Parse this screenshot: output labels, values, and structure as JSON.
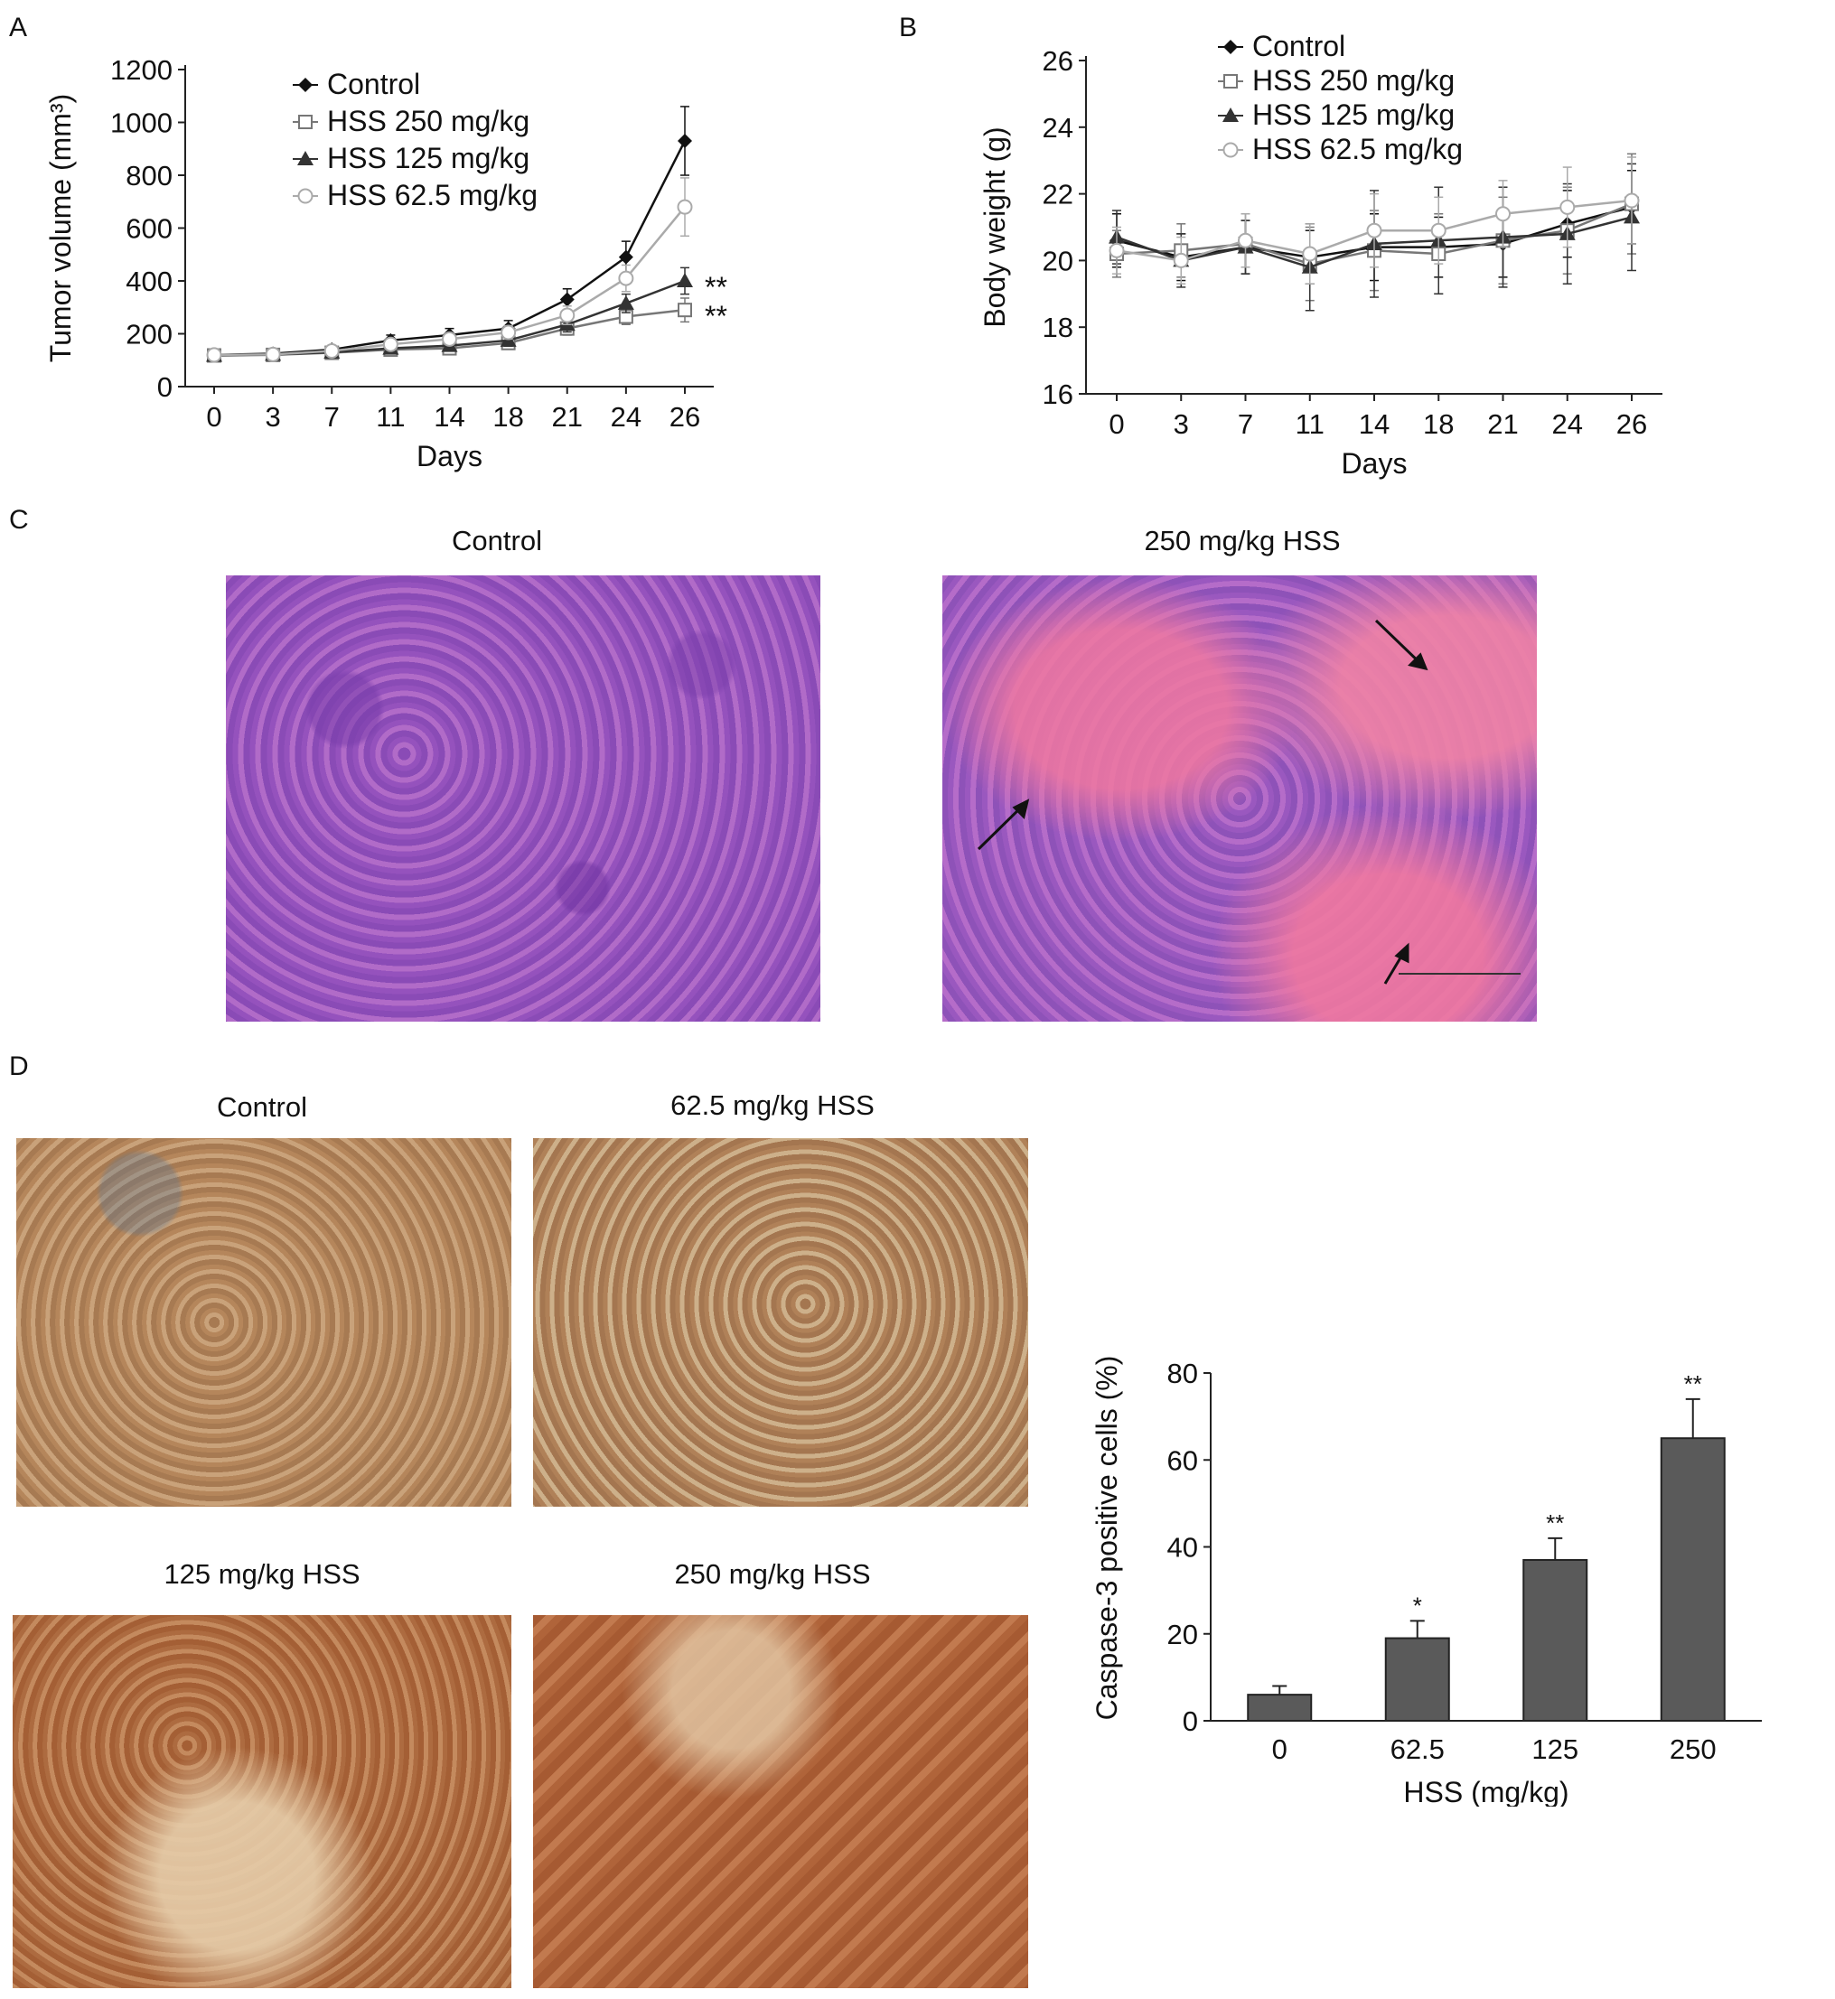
{
  "panels": {
    "A": "A",
    "B": "B",
    "C": "C",
    "D": "D"
  },
  "panel_c": {
    "titles": [
      "Control",
      "250 mg/kg HSS"
    ]
  },
  "panel_d": {
    "image_titles": [
      "Control",
      "62.5 mg/kg HSS",
      "125 mg/kg HSS",
      "250 mg/kg HSS"
    ]
  },
  "colors": {
    "control": "#111111",
    "hss250": "#777777",
    "hss125": "#333333",
    "hss62": "#aaaaaa",
    "bar": "#5a5a5a"
  },
  "chart_data": [
    {
      "type": "line",
      "xlabel": "Days",
      "ylabel": "Tumor volume (mm³)",
      "categories": [
        "0",
        "3",
        "7",
        "11",
        "14",
        "18",
        "21",
        "24",
        "26"
      ],
      "ylim": [
        0,
        1200
      ],
      "yticks": [
        0,
        200,
        400,
        600,
        800,
        1000,
        1200
      ],
      "legend_position": "top-left",
      "series": [
        {
          "name": "Control",
          "marker": "diamond-filled",
          "values": [
            120,
            125,
            140,
            175,
            195,
            220,
            330,
            490,
            930
          ],
          "errors": [
            10,
            10,
            15,
            20,
            25,
            30,
            40,
            60,
            130
          ]
        },
        {
          "name": "HSS 250 mg/kg",
          "marker": "square-open",
          "values": [
            118,
            120,
            128,
            140,
            145,
            165,
            220,
            265,
            290
          ],
          "errors": [
            10,
            10,
            12,
            15,
            20,
            20,
            25,
            30,
            45
          ]
        },
        {
          "name": "HSS 125 mg/kg",
          "marker": "triangle-filled",
          "values": [
            118,
            122,
            130,
            145,
            155,
            175,
            235,
            315,
            400
          ],
          "errors": [
            10,
            10,
            12,
            15,
            18,
            22,
            28,
            35,
            50
          ]
        },
        {
          "name": "HSS 62.5 mg/kg",
          "marker": "circle-open",
          "values": [
            120,
            122,
            135,
            160,
            180,
            205,
            270,
            410,
            680
          ],
          "errors": [
            10,
            10,
            14,
            18,
            22,
            25,
            35,
            50,
            110
          ]
        }
      ],
      "annotations": [
        "**",
        "**"
      ]
    },
    {
      "type": "line",
      "xlabel": "Days",
      "ylabel": "Body weight (g)",
      "categories": [
        "0",
        "3",
        "7",
        "11",
        "14",
        "18",
        "21",
        "24",
        "26"
      ],
      "ylim": [
        16,
        26
      ],
      "yticks": [
        16,
        18,
        20,
        22,
        24,
        26
      ],
      "legend_position": "top-center",
      "series": [
        {
          "name": "Control",
          "marker": "diamond-filled",
          "values": [
            20.6,
            20.1,
            20.4,
            20.1,
            20.4,
            20.4,
            20.5,
            21.1,
            21.6
          ],
          "errors": [
            0.8,
            0.7,
            0.8,
            0.8,
            1.0,
            0.9,
            1.0,
            1.0,
            1.1
          ]
        },
        {
          "name": "HSS 250 mg/kg",
          "marker": "square-open",
          "values": [
            20.2,
            20.3,
            20.5,
            19.9,
            20.3,
            20.2,
            20.6,
            20.9,
            21.7
          ],
          "errors": [
            0.7,
            0.8,
            0.9,
            1.1,
            1.2,
            1.2,
            1.3,
            1.3,
            1.5
          ]
        },
        {
          "name": "HSS 125 mg/kg",
          "marker": "triangle-filled",
          "values": [
            20.7,
            20.0,
            20.4,
            19.8,
            20.5,
            20.6,
            20.7,
            20.8,
            21.3
          ],
          "errors": [
            0.8,
            0.8,
            0.8,
            1.3,
            1.6,
            1.6,
            1.5,
            1.5,
            1.6
          ]
        },
        {
          "name": "HSS 62.5 mg/kg",
          "marker": "circle-open",
          "values": [
            20.3,
            20.0,
            20.6,
            20.2,
            20.9,
            20.9,
            21.4,
            21.6,
            21.8
          ],
          "errors": [
            0.7,
            0.7,
            0.8,
            0.9,
            1.1,
            1.0,
            1.0,
            1.2,
            1.3
          ]
        }
      ]
    },
    {
      "type": "bar",
      "xlabel": "HSS (mg/kg)",
      "ylabel": "Caspase-3 positive cells (%)",
      "categories": [
        "0",
        "62.5",
        "125",
        "250"
      ],
      "values": [
        6,
        19,
        37,
        65
      ],
      "errors": [
        2,
        4,
        5,
        9
      ],
      "significance": [
        "",
        "*",
        "**",
        "**"
      ],
      "ylim": [
        0,
        80
      ],
      "yticks": [
        0,
        20,
        40,
        60,
        80
      ]
    }
  ]
}
